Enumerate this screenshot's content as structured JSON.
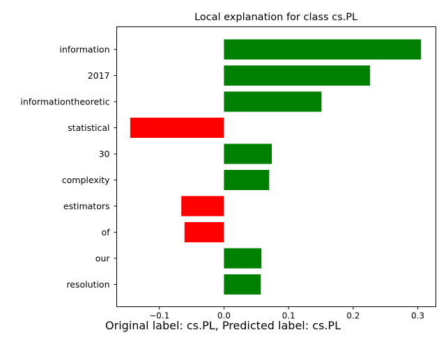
{
  "chart_data": {
    "type": "bar",
    "orientation": "horizontal",
    "title": "Local explanation for class cs.PL",
    "categories": [
      "information",
      "2017",
      "informationtheoretic",
      "statistical",
      "30",
      "complexity",
      "estimators",
      "of",
      "our",
      "resolution"
    ],
    "values": [
      0.305,
      0.226,
      0.151,
      -0.145,
      0.074,
      0.07,
      -0.066,
      -0.061,
      0.058,
      0.057
    ],
    "xlim": [
      -0.166,
      0.328
    ],
    "xticks": [
      -0.1,
      0.0,
      0.1,
      0.2,
      0.3
    ],
    "xtick_labels": [
      "−0.1",
      "0.0",
      "0.1",
      "0.2",
      "0.3"
    ],
    "xlabel": "",
    "ylabel": "",
    "grid": false,
    "colors": {
      "positive": "#008000",
      "negative": "#ff0000"
    }
  },
  "caption": "Original label: cs.PL, Predicted label: cs.PL"
}
